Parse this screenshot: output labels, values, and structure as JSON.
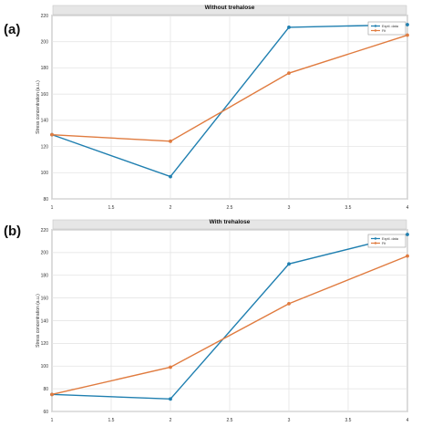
{
  "figure": {
    "panels": [
      {
        "label": "(a)"
      },
      {
        "label": "(b)"
      }
    ]
  },
  "chart_data": [
    {
      "type": "line",
      "title": "Without trehalose",
      "xlabel": "",
      "ylabel": "Stress concentration (a.u.)",
      "xlim": [
        1,
        4
      ],
      "ylim": [
        80,
        220
      ],
      "x_ticks": [
        "1",
        "1.5",
        "2",
        "2.5",
        "3",
        "3.5",
        "4"
      ],
      "y_ticks": [
        "80",
        "100",
        "120",
        "140",
        "160",
        "180",
        "200",
        "220"
      ],
      "grid": true,
      "legend_position": "top-right",
      "x": [
        1,
        2,
        3,
        4
      ],
      "series": [
        {
          "name": "Exptl. data",
          "color": "#1f7fb0",
          "values": [
            129,
            97,
            211,
            213
          ]
        },
        {
          "name": "Fit",
          "color": "#e07b3f",
          "values": [
            129,
            124,
            176,
            205
          ]
        }
      ]
    },
    {
      "type": "line",
      "title": "With trehalose",
      "xlabel": "",
      "ylabel": "Stress concentration (a.u.)",
      "xlim": [
        1,
        4
      ],
      "ylim": [
        60,
        220
      ],
      "x_ticks": [
        "1",
        "1.5",
        "2",
        "2.5",
        "3",
        "3.5",
        "4"
      ],
      "y_ticks": [
        "60",
        "80",
        "100",
        "120",
        "140",
        "160",
        "180",
        "200",
        "220"
      ],
      "grid": true,
      "legend_position": "top-right",
      "x": [
        1,
        2,
        3,
        4
      ],
      "series": [
        {
          "name": "Exptl. data",
          "color": "#1f7fb0",
          "values": [
            75,
            71,
            190,
            216
          ]
        },
        {
          "name": "Fit",
          "color": "#e07b3f",
          "values": [
            75,
            99,
            155,
            197
          ]
        }
      ]
    }
  ]
}
